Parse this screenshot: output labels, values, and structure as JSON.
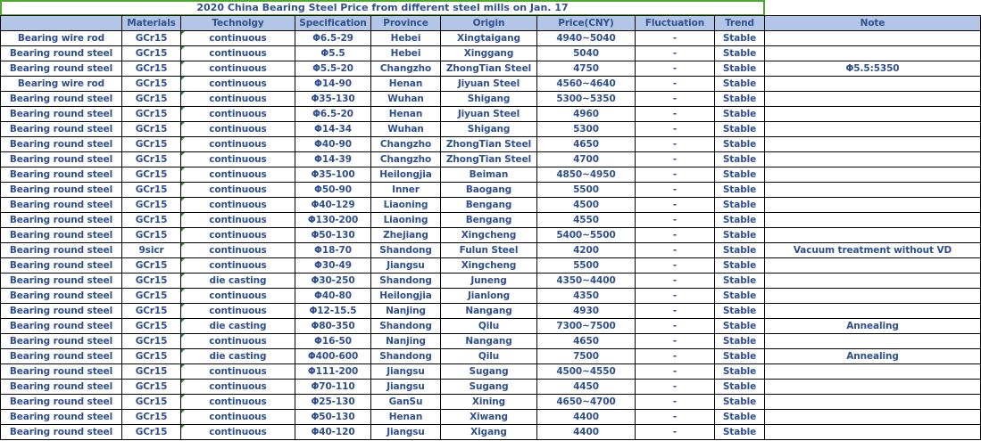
{
  "title": "2020 China Bearing Steel Price from different steel mills on Jan. 17",
  "headers": [
    "",
    "Materials",
    "Technolgy",
    "Specification",
    "Province",
    "Origin",
    "Price(CNY)",
    "Fluctuation",
    "Trend",
    "Note"
  ],
  "rows": [
    [
      "Bearing wire rod",
      "GCr15",
      "continuous",
      "Φ6.5-29",
      "Hebei",
      "Xingtaigang",
      "4940~5040",
      "-",
      "Stable",
      ""
    ],
    [
      "Bearing round steel",
      "GCr15",
      "continuous",
      "Φ5.5",
      "Hebei",
      "Xinggang",
      "5040",
      "-",
      "Stable",
      ""
    ],
    [
      "Bearing round steel",
      "GCr15",
      "continuous",
      "Φ5.5-20",
      "Changzho",
      "ZhongTian Steel",
      "4750",
      "-",
      "Stable",
      "Φ5.5:5350"
    ],
    [
      "Bearing wire rod",
      "GCr15",
      "continuous",
      "Φ14-90",
      "Henan",
      "Jiyuan Steel",
      "4560~4640",
      "-",
      "Stable",
      ""
    ],
    [
      "Bearing round steel",
      "GCr15",
      "continuous",
      "Φ35-130",
      "Wuhan",
      "Shigang",
      "5300~5350",
      "-",
      "Stable",
      ""
    ],
    [
      "Bearing round steel",
      "GCr15",
      "continuous",
      "Φ6.5-20",
      "Henan",
      "Jiyuan Steel",
      "4960",
      "-",
      "Stable",
      ""
    ],
    [
      "Bearing round steel",
      "GCr15",
      "continuous",
      "Φ14-34",
      "Wuhan",
      "Shigang",
      "5300",
      "-",
      "Stable",
      ""
    ],
    [
      "Bearing round steel",
      "GCr15",
      "continuous",
      "Φ40-90",
      "Changzho",
      "ZhongTian Steel",
      "4650",
      "-",
      "Stable",
      ""
    ],
    [
      "Bearing round steel",
      "GCr15",
      "continuous",
      "Φ14-39",
      "Changzho",
      "ZhongTian Steel",
      "4700",
      "-",
      "Stable",
      ""
    ],
    [
      "Bearing round steel",
      "GCr15",
      "continuous",
      "Φ35-100",
      "Heilongjia",
      "Beiman",
      "4850~4950",
      "-",
      "Stable",
      ""
    ],
    [
      "Bearing round steel",
      "GCr15",
      "continuous",
      "Φ50-90",
      "Inner",
      "Baogang",
      "5500",
      "-",
      "Stable",
      ""
    ],
    [
      "Bearing round steel",
      "GCr15",
      "continuous",
      "Φ40-129",
      "Liaoning",
      "Bengang",
      "4500",
      "-",
      "Stable",
      ""
    ],
    [
      "Bearing round steel",
      "GCr15",
      "continuous",
      "Φ130-200",
      "Liaoning",
      "Bengang",
      "4550",
      "-",
      "Stable",
      ""
    ],
    [
      "Bearing round steel",
      "GCr15",
      "continuous",
      "Φ50-130",
      "Zhejiang",
      "Xingcheng",
      "5400~5500",
      "-",
      "Stable",
      ""
    ],
    [
      "Bearing round steel",
      "9sicr",
      "continuous",
      "Φ18-70",
      "Shandong",
      "Fulun Steel",
      "4200",
      "-",
      "Stable",
      "Vacuum treatment without VD"
    ],
    [
      "Bearing round steel",
      "GCr15",
      "continuous",
      "Φ30-49",
      "Jiangsu",
      "Xingcheng",
      "5500",
      "-",
      "Stable",
      ""
    ],
    [
      "Bearing round steel",
      "GCr15",
      "die casting",
      "Φ30-250",
      "Shandong",
      "Juneng",
      "4350~4400",
      "-",
      "Stable",
      ""
    ],
    [
      "Bearing round steel",
      "GCr15",
      "continuous",
      "Φ40-80",
      "Heilongjia",
      "Jianlong",
      "4350",
      "-",
      "Stable",
      ""
    ],
    [
      "Bearing round steel",
      "GCr15",
      "continuous",
      "Φ12-15.5",
      "Nanjing",
      "Nangang",
      "4930",
      "-",
      "Stable",
      ""
    ],
    [
      "Bearing round steel",
      "GCr15",
      "die casting",
      "Φ80-350",
      "Shandong",
      "Qilu",
      "7300~7500",
      "-",
      "Stable",
      "Annealing"
    ],
    [
      "Bearing round steel",
      "GCr15",
      "continuous",
      "Φ16-50",
      "Nanjing",
      "Nangang",
      "4650",
      "-",
      "Stable",
      ""
    ],
    [
      "Bearing round steel",
      "GCr15",
      "die casting",
      "Φ400-600",
      "Shandong",
      "Qilu",
      "7500",
      "-",
      "Stable",
      "Annealing"
    ],
    [
      "Bearing round steel",
      "GCr15",
      "continuous",
      "Φ111-200",
      "Jiangsu",
      "Sugang",
      "4500~4550",
      "-",
      "Stable",
      ""
    ],
    [
      "Bearing round steel",
      "GCr15",
      "continuous",
      "Φ70-110",
      "Jiangsu",
      "Sugang",
      "4450",
      "-",
      "Stable",
      ""
    ],
    [
      "Bearing round steel",
      "GCr15",
      "continuous",
      "Φ25-130",
      "GanSu",
      "Xining",
      "4650~4700",
      "-",
      "Stable",
      ""
    ],
    [
      "Bearing round steel",
      "GCr15",
      "continuous",
      "Φ50-130",
      "Henan",
      "Xiwang",
      "4400",
      "-",
      "Stable",
      ""
    ],
    [
      "Bearing round steel",
      "GCr15",
      "continuous",
      "Φ40-120",
      "Jiangsu",
      "Xigang",
      "4400",
      "-",
      "Stable",
      ""
    ]
  ]
}
